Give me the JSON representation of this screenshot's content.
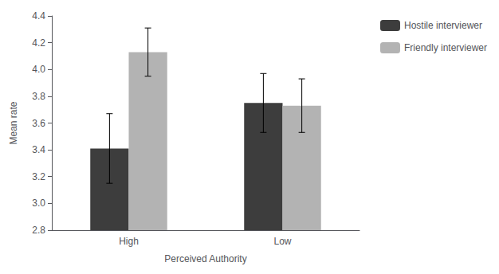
{
  "chart_data": {
    "type": "bar",
    "categories": [
      "High",
      "Low"
    ],
    "series": [
      {
        "name": "Hostile interviewer",
        "color": "#3d3d3d",
        "values": [
          3.41,
          3.75
        ],
        "errors": [
          0.26,
          0.22
        ]
      },
      {
        "name": "Friendly interviewer",
        "color": "#b3b3b3",
        "values": [
          4.13,
          3.73
        ],
        "errors": [
          0.18,
          0.2
        ]
      }
    ],
    "xlabel": "Perceived Authority",
    "ylabel": "Mean rate",
    "ylim": [
      2.8,
      4.4
    ],
    "yticks": [
      2.8,
      {
        "value": 3,
        "label": "3.0"
      },
      3.2,
      3.4,
      3.6,
      3.8,
      {
        "value": 4,
        "label": "4.0"
      },
      4.2,
      4.4
    ],
    "grid": false,
    "legend": "upper right"
  }
}
